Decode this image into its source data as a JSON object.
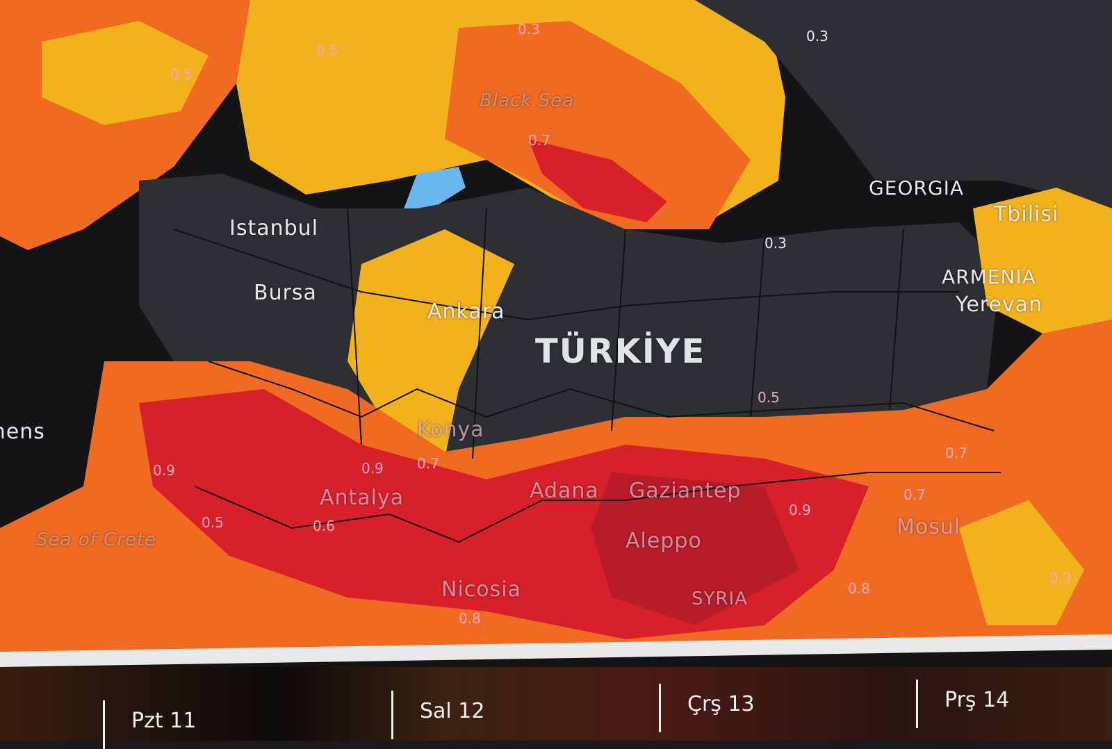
{
  "map": {
    "labels": {
      "istanbul": "Istanbul",
      "bursa": "Bursa",
      "ankara": "Ankara",
      "turkiye": "TÜRKİYE",
      "konya": "Konya",
      "antalya": "Antalya",
      "adana": "Adana",
      "gaziantep": "Gaziantep",
      "aleppo": "Aleppo",
      "mosul": "Mosul",
      "syria": "SYRIA",
      "nicosia": "Nicosia",
      "georgia": "GEORGIA",
      "tbilisi": "Tbilisi",
      "armenia": "ARMENIA",
      "yerevan": "Yerevan",
      "athens": "Athens",
      "black_sea": "Black Sea",
      "sea_of_crete": "Sea of Crete"
    },
    "contour_values": [
      "0.3",
      "0.5",
      "0.5",
      "0.7",
      "0.7",
      "0.9",
      "0.9",
      "0.5",
      "0.6",
      "0.7",
      "0.9",
      "0.8",
      "0.8",
      "0.3",
      "0.5",
      "0.3",
      "0.7",
      "0.3"
    ],
    "colors": {
      "land_dark": "#2e2f33",
      "sea_dark": "#141416",
      "yellow": "#f2b21c",
      "orange": "#f06a22",
      "red": "#d8202a",
      "deep_red": "#b81c2a",
      "blue": "#6ab8f0"
    }
  },
  "timeline": {
    "days": [
      "Pzt 11",
      "Sal 12",
      "Çrş 13",
      "Prş 14"
    ]
  }
}
